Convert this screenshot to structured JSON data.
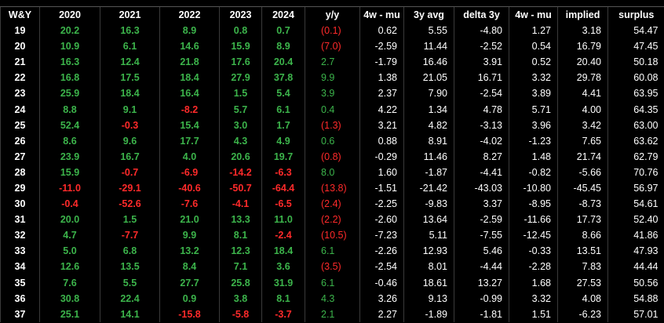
{
  "table": {
    "columns": [
      "W&Y",
      "2020",
      "2021",
      "2022",
      "2023",
      "2024",
      "y/y",
      "4w - mu",
      "3y avg",
      "delta 3y",
      "4w - mu",
      "implied",
      "surplus"
    ],
    "colors": {
      "positive": "#3cb44b",
      "negative": "#ff2a2a"
    },
    "rows": [
      [
        "19",
        "20.2",
        "16.3",
        "8.9",
        "0.8",
        "0.7",
        "(0.1)",
        "0.62",
        "5.55",
        "-4.80",
        "1.27",
        "3.18",
        "54.47"
      ],
      [
        "20",
        "10.9",
        "6.1",
        "14.6",
        "15.9",
        "8.9",
        "(7.0)",
        "-2.59",
        "11.44",
        "-2.52",
        "0.54",
        "16.79",
        "47.45"
      ],
      [
        "21",
        "16.3",
        "12.4",
        "21.8",
        "17.6",
        "20.4",
        "2.7",
        "-1.79",
        "16.46",
        "3.91",
        "0.52",
        "20.40",
        "50.18"
      ],
      [
        "22",
        "16.8",
        "17.5",
        "18.4",
        "27.9",
        "37.8",
        "9.9",
        "1.38",
        "21.05",
        "16.71",
        "3.32",
        "29.78",
        "60.08"
      ],
      [
        "23",
        "25.9",
        "18.4",
        "16.4",
        "1.5",
        "5.4",
        "3.9",
        "2.37",
        "7.90",
        "-2.54",
        "3.89",
        "4.41",
        "63.95"
      ],
      [
        "24",
        "8.8",
        "9.1",
        "-8.2",
        "5.7",
        "6.1",
        "0.4",
        "4.22",
        "1.34",
        "4.78",
        "5.71",
        "4.00",
        "64.35"
      ],
      [
        "25",
        "52.4",
        "-0.3",
        "15.4",
        "3.0",
        "1.7",
        "(1.3)",
        "3.21",
        "4.82",
        "-3.13",
        "3.96",
        "3.42",
        "63.00"
      ],
      [
        "26",
        "8.6",
        "9.6",
        "17.7",
        "4.3",
        "4.9",
        "0.6",
        "0.88",
        "8.91",
        "-4.02",
        "-1.23",
        "7.65",
        "63.62"
      ],
      [
        "27",
        "23.9",
        "16.7",
        "4.0",
        "20.6",
        "19.7",
        "(0.8)",
        "-0.29",
        "11.46",
        "8.27",
        "1.48",
        "21.74",
        "62.79"
      ],
      [
        "28",
        "15.9",
        "-0.7",
        "-6.9",
        "-14.2",
        "-6.3",
        "8.0",
        "1.60",
        "-1.87",
        "-4.41",
        "-0.82",
        "-5.66",
        "70.76"
      ],
      [
        "29",
        "-11.0",
        "-29.1",
        "-40.6",
        "-50.7",
        "-64.4",
        "(13.8)",
        "-1.51",
        "-21.42",
        "-43.03",
        "-10.80",
        "-45.45",
        "56.97"
      ],
      [
        "30",
        "-0.4",
        "-52.6",
        "-7.6",
        "-4.1",
        "-6.5",
        "(2.4)",
        "-2.25",
        "-9.83",
        "3.37",
        "-8.95",
        "-8.73",
        "54.61"
      ],
      [
        "31",
        "20.0",
        "1.5",
        "21.0",
        "13.3",
        "11.0",
        "(2.2)",
        "-2.60",
        "13.64",
        "-2.59",
        "-11.66",
        "17.73",
        "52.40"
      ],
      [
        "32",
        "4.7",
        "-7.7",
        "9.9",
        "8.1",
        "-2.4",
        "(10.5)",
        "-7.23",
        "5.11",
        "-7.55",
        "-12.45",
        "8.66",
        "41.86"
      ],
      [
        "33",
        "5.0",
        "6.8",
        "13.2",
        "12.3",
        "18.4",
        "6.1",
        "-2.26",
        "12.93",
        "5.46",
        "-0.33",
        "13.51",
        "47.93"
      ],
      [
        "34",
        "12.6",
        "13.5",
        "8.4",
        "7.1",
        "3.6",
        "(3.5)",
        "-2.54",
        "8.01",
        "-4.44",
        "-2.28",
        "7.83",
        "44.44"
      ],
      [
        "35",
        "7.6",
        "5.5",
        "27.7",
        "25.8",
        "31.9",
        "6.1",
        "-0.46",
        "18.61",
        "13.27",
        "1.68",
        "27.53",
        "50.56"
      ],
      [
        "36",
        "30.8",
        "22.4",
        "0.9",
        "3.8",
        "8.1",
        "4.3",
        "3.26",
        "9.13",
        "-0.99",
        "3.32",
        "4.08",
        "54.88"
      ],
      [
        "37",
        "25.1",
        "14.1",
        "-15.8",
        "-5.8",
        "-3.7",
        "2.1",
        "2.27",
        "-1.89",
        "-1.81",
        "1.51",
        "-6.23",
        "57.01"
      ]
    ]
  }
}
